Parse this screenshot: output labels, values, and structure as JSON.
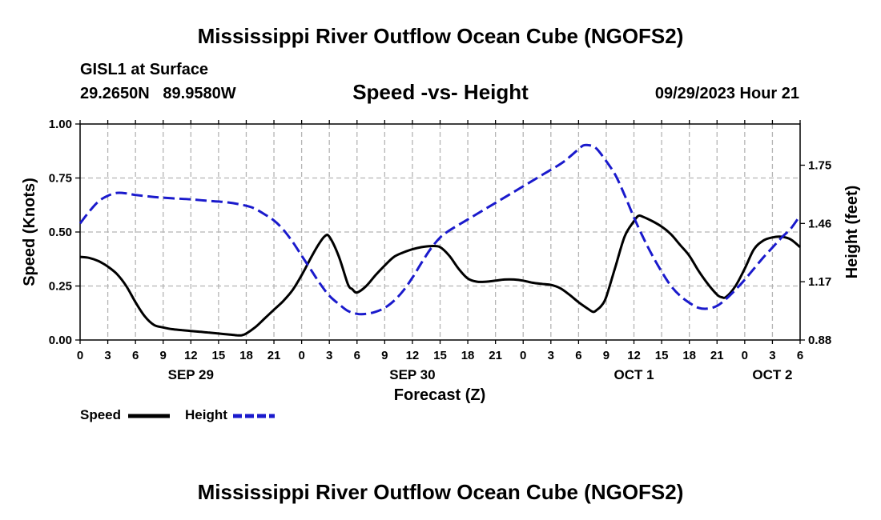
{
  "header": {
    "title": "Mississippi River Outflow Ocean Cube (NGOFS2)",
    "station": "GISL1 at Surface",
    "coords": "29.2650N   89.9580W",
    "subtitle": "Speed -vs- Height",
    "timestamp": "09/29/2023 Hour 21",
    "footer_title": "Mississippi River Outflow Ocean Cube (NGOFS2)"
  },
  "colors": {
    "speed": "#000000",
    "height": "#1a1acc",
    "grid": "#b4b4b4"
  },
  "chart_data": {
    "type": "line",
    "xlabel": "Forecast (Z)",
    "ylabel_left": "Speed (Knots)",
    "ylabel_right": "Height (feet)",
    "x_unit": "forecast hours from SEP 29 00Z",
    "xlim": [
      0,
      78
    ],
    "ylim_left": [
      0,
      1
    ],
    "ylim_right": [
      0.88,
      1.955
    ],
    "x_ticks": [
      {
        "x": 0,
        "label": "0"
      },
      {
        "x": 3,
        "label": "3"
      },
      {
        "x": 6,
        "label": "6"
      },
      {
        "x": 9,
        "label": "9"
      },
      {
        "x": 12,
        "label": "12"
      },
      {
        "x": 15,
        "label": "15"
      },
      {
        "x": 18,
        "label": "18"
      },
      {
        "x": 21,
        "label": "21"
      },
      {
        "x": 24,
        "label": "0"
      },
      {
        "x": 27,
        "label": "3"
      },
      {
        "x": 30,
        "label": "6"
      },
      {
        "x": 33,
        "label": "9"
      },
      {
        "x": 36,
        "label": "12"
      },
      {
        "x": 39,
        "label": "15"
      },
      {
        "x": 42,
        "label": "18"
      },
      {
        "x": 45,
        "label": "21"
      },
      {
        "x": 48,
        "label": "0"
      },
      {
        "x": 51,
        "label": "3"
      },
      {
        "x": 54,
        "label": "6"
      },
      {
        "x": 57,
        "label": "9"
      },
      {
        "x": 60,
        "label": "12"
      },
      {
        "x": 63,
        "label": "15"
      },
      {
        "x": 66,
        "label": "18"
      },
      {
        "x": 69,
        "label": "21"
      },
      {
        "x": 72,
        "label": "0"
      },
      {
        "x": 75,
        "label": "3"
      },
      {
        "x": 78,
        "label": "6"
      }
    ],
    "date_labels": [
      {
        "x": 12,
        "label": "SEP 29"
      },
      {
        "x": 36,
        "label": "SEP 30"
      },
      {
        "x": 60,
        "label": "OCT 1"
      },
      {
        "x": 75,
        "label": "OCT 2"
      }
    ],
    "left_ticks": [
      {
        "v": 0,
        "label": "0.00"
      },
      {
        "v": 0.25,
        "label": "0.25"
      },
      {
        "v": 0.5,
        "label": "0.50"
      },
      {
        "v": 0.75,
        "label": "0.75"
      },
      {
        "v": 1,
        "label": "1.00"
      }
    ],
    "right_ticks": [
      {
        "v": 0.88,
        "label": "0.88"
      },
      {
        "v": 1.17,
        "label": "1.17"
      },
      {
        "v": 1.46,
        "label": "1.46"
      },
      {
        "v": 1.75,
        "label": "1.75"
      }
    ],
    "series": [
      {
        "name": "Speed",
        "axis": "left",
        "dashed": false,
        "points": [
          [
            0,
            0.385
          ],
          [
            1,
            0.38
          ],
          [
            2,
            0.365
          ],
          [
            3,
            0.34
          ],
          [
            4,
            0.305
          ],
          [
            5,
            0.25
          ],
          [
            6,
            0.175
          ],
          [
            7,
            0.11
          ],
          [
            8,
            0.07
          ],
          [
            9,
            0.058
          ],
          [
            10,
            0.05
          ],
          [
            11,
            0.046
          ],
          [
            12,
            0.042
          ],
          [
            13,
            0.038
          ],
          [
            14,
            0.034
          ],
          [
            15,
            0.03
          ],
          [
            16,
            0.026
          ],
          [
            17,
            0.022
          ],
          [
            17.5,
            0.022
          ],
          [
            18,
            0.03
          ],
          [
            19,
            0.06
          ],
          [
            20,
            0.1
          ],
          [
            21,
            0.14
          ],
          [
            22,
            0.18
          ],
          [
            23,
            0.23
          ],
          [
            24,
            0.3
          ],
          [
            25,
            0.38
          ],
          [
            25.8,
            0.44
          ],
          [
            26.5,
            0.48
          ],
          [
            27,
            0.478
          ],
          [
            28,
            0.39
          ],
          [
            29,
            0.26
          ],
          [
            29.5,
            0.235
          ],
          [
            30,
            0.22
          ],
          [
            31,
            0.25
          ],
          [
            32,
            0.3
          ],
          [
            33,
            0.345
          ],
          [
            34,
            0.385
          ],
          [
            35,
            0.405
          ],
          [
            36,
            0.42
          ],
          [
            37,
            0.43
          ],
          [
            38,
            0.435
          ],
          [
            39,
            0.43
          ],
          [
            40,
            0.39
          ],
          [
            41,
            0.33
          ],
          [
            42,
            0.285
          ],
          [
            43,
            0.27
          ],
          [
            44,
            0.27
          ],
          [
            45,
            0.275
          ],
          [
            46,
            0.28
          ],
          [
            47,
            0.28
          ],
          [
            48,
            0.275
          ],
          [
            49,
            0.265
          ],
          [
            50,
            0.26
          ],
          [
            51,
            0.255
          ],
          [
            52,
            0.24
          ],
          [
            53,
            0.21
          ],
          [
            54,
            0.175
          ],
          [
            55,
            0.145
          ],
          [
            55.6,
            0.13
          ],
          [
            56,
            0.14
          ],
          [
            56.5,
            0.16
          ],
          [
            57,
            0.2
          ],
          [
            58,
            0.34
          ],
          [
            59,
            0.48
          ],
          [
            60,
            0.55
          ],
          [
            60.5,
            0.575
          ],
          [
            61,
            0.57
          ],
          [
            62,
            0.55
          ],
          [
            63,
            0.525
          ],
          [
            64,
            0.49
          ],
          [
            65,
            0.44
          ],
          [
            66,
            0.39
          ],
          [
            67,
            0.32
          ],
          [
            68,
            0.26
          ],
          [
            69,
            0.21
          ],
          [
            69.5,
            0.198
          ],
          [
            70,
            0.2
          ],
          [
            71,
            0.25
          ],
          [
            72,
            0.33
          ],
          [
            73,
            0.42
          ],
          [
            74,
            0.46
          ],
          [
            75,
            0.475
          ],
          [
            76,
            0.478
          ],
          [
            77,
            0.465
          ],
          [
            78,
            0.43
          ]
        ]
      },
      {
        "name": "Height",
        "axis": "right",
        "dashed": true,
        "points": [
          [
            0,
            1.46
          ],
          [
            1,
            1.52
          ],
          [
            2,
            1.57
          ],
          [
            3,
            1.598
          ],
          [
            4,
            1.612
          ],
          [
            5,
            1.61
          ],
          [
            6,
            1.602
          ],
          [
            8,
            1.592
          ],
          [
            10,
            1.585
          ],
          [
            12,
            1.58
          ],
          [
            14,
            1.572
          ],
          [
            16,
            1.565
          ],
          [
            18,
            1.548
          ],
          [
            19,
            1.532
          ],
          [
            20,
            1.505
          ],
          [
            21,
            1.475
          ],
          [
            22,
            1.43
          ],
          [
            23,
            1.37
          ],
          [
            24,
            1.3
          ],
          [
            25,
            1.23
          ],
          [
            26,
            1.16
          ],
          [
            27,
            1.1
          ],
          [
            28,
            1.06
          ],
          [
            29,
            1.025
          ],
          [
            30,
            1.01
          ],
          [
            31,
            1.01
          ],
          [
            32,
            1.02
          ],
          [
            33,
            1.04
          ],
          [
            34,
            1.075
          ],
          [
            35,
            1.125
          ],
          [
            36,
            1.19
          ],
          [
            37,
            1.265
          ],
          [
            38,
            1.335
          ],
          [
            39,
            1.39
          ],
          [
            40,
            1.425
          ],
          [
            42,
            1.48
          ],
          [
            44,
            1.535
          ],
          [
            46,
            1.59
          ],
          [
            48,
            1.645
          ],
          [
            50,
            1.7
          ],
          [
            52,
            1.755
          ],
          [
            53,
            1.79
          ],
          [
            54,
            1.83
          ],
          [
            54.5,
            1.848
          ],
          [
            55,
            1.85
          ],
          [
            55.5,
            1.845
          ],
          [
            56,
            1.83
          ],
          [
            57,
            1.77
          ],
          [
            58,
            1.7
          ],
          [
            59,
            1.6
          ],
          [
            60,
            1.49
          ],
          [
            61,
            1.39
          ],
          [
            62,
            1.3
          ],
          [
            63,
            1.22
          ],
          [
            64,
            1.15
          ],
          [
            65,
            1.1
          ],
          [
            66,
            1.065
          ],
          [
            67,
            1.04
          ],
          [
            68,
            1.036
          ],
          [
            69,
            1.05
          ],
          [
            70,
            1.085
          ],
          [
            71,
            1.13
          ],
          [
            72,
            1.18
          ],
          [
            73,
            1.235
          ],
          [
            74,
            1.29
          ],
          [
            75,
            1.34
          ],
          [
            76,
            1.39
          ],
          [
            77,
            1.435
          ],
          [
            78,
            1.5
          ]
        ]
      }
    ],
    "legend": [
      {
        "label": "Speed",
        "dashed": false
      },
      {
        "label": "Height",
        "dashed": true
      }
    ]
  }
}
